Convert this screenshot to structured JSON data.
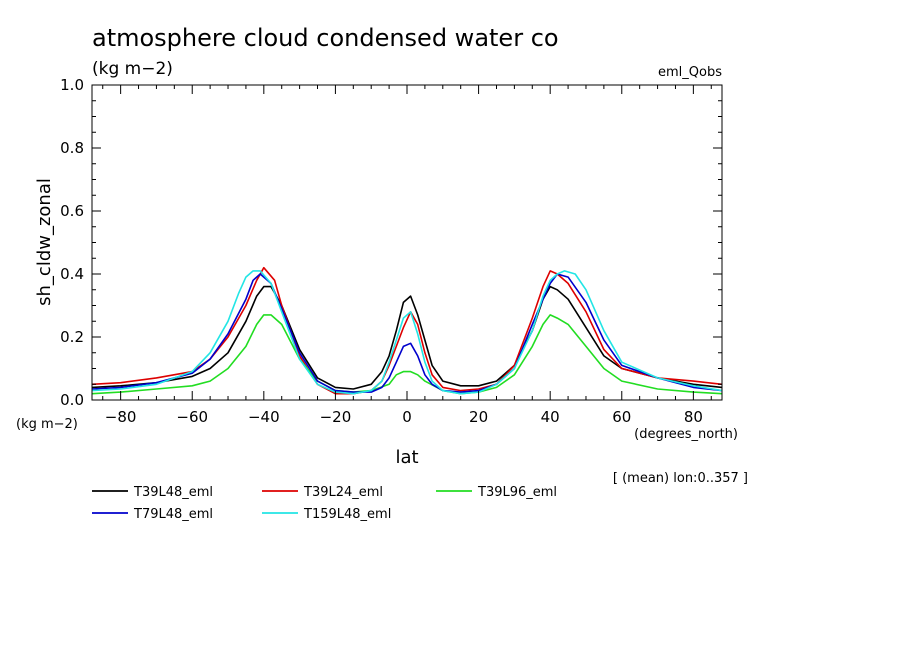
{
  "chart_data": {
    "type": "line",
    "title": "atmosphere cloud condensed water co",
    "subtitle": "(kg m−2)",
    "experiment": "eml_Qobs",
    "ylabel": "sh_cldw_zonal",
    "yunits": "(kg m−2)",
    "xlabel": "lat",
    "xunits": "(degrees_north)",
    "footnote": "[ (mean) lon:0..357 ]",
    "xlim": [
      -88,
      88
    ],
    "ylim": [
      0,
      1.0
    ],
    "xticks": [
      -80,
      -60,
      -40,
      -20,
      0,
      20,
      40,
      60,
      80
    ],
    "xtick_labels": [
      "−80",
      "−60",
      "−40",
      "−20",
      "0",
      "20",
      "40",
      "60",
      "80"
    ],
    "yticks": [
      0,
      0.2,
      0.4,
      0.6,
      0.8,
      1.0
    ],
    "ytick_labels": [
      "0.0",
      "0.2",
      "0.4",
      "0.6",
      "0.8",
      "1.0"
    ],
    "grid": false,
    "legend_position": "bottom",
    "series": [
      {
        "name": "T39L48_eml",
        "color": "#000000",
        "x": [
          -88,
          -80,
          -70,
          -60,
          -55,
          -50,
          -45,
          -42,
          -40,
          -38,
          -35,
          -30,
          -25,
          -20,
          -15,
          -10,
          -7,
          -5,
          -3,
          -1,
          1,
          3,
          5,
          7,
          10,
          15,
          20,
          25,
          30,
          35,
          38,
          40,
          42,
          45,
          50,
          55,
          60,
          70,
          80,
          88
        ],
        "y": [
          0.04,
          0.045,
          0.055,
          0.075,
          0.1,
          0.15,
          0.25,
          0.33,
          0.36,
          0.36,
          0.3,
          0.16,
          0.07,
          0.04,
          0.035,
          0.05,
          0.09,
          0.14,
          0.22,
          0.31,
          0.33,
          0.27,
          0.19,
          0.11,
          0.06,
          0.045,
          0.045,
          0.06,
          0.11,
          0.22,
          0.32,
          0.36,
          0.35,
          0.32,
          0.23,
          0.14,
          0.1,
          0.07,
          0.05,
          0.04
        ]
      },
      {
        "name": "T39L24_eml",
        "color": "#dd0000",
        "x": [
          -88,
          -80,
          -70,
          -60,
          -55,
          -50,
          -45,
          -42,
          -40,
          -37,
          -35,
          -30,
          -25,
          -20,
          -15,
          -10,
          -7,
          -5,
          -3,
          -1,
          1,
          3,
          5,
          7,
          10,
          15,
          20,
          25,
          30,
          35,
          38,
          40,
          42,
          45,
          50,
          55,
          60,
          70,
          80,
          88
        ],
        "y": [
          0.05,
          0.055,
          0.07,
          0.09,
          0.13,
          0.2,
          0.3,
          0.38,
          0.42,
          0.38,
          0.3,
          0.14,
          0.05,
          0.02,
          0.02,
          0.03,
          0.06,
          0.11,
          0.17,
          0.23,
          0.28,
          0.24,
          0.15,
          0.08,
          0.04,
          0.03,
          0.035,
          0.05,
          0.11,
          0.26,
          0.36,
          0.41,
          0.4,
          0.37,
          0.28,
          0.16,
          0.1,
          0.07,
          0.06,
          0.05
        ]
      },
      {
        "name": "T39L96_eml",
        "color": "#22dd22",
        "x": [
          -88,
          -80,
          -70,
          -60,
          -55,
          -50,
          -45,
          -42,
          -40,
          -38,
          -35,
          -30,
          -25,
          -20,
          -15,
          -10,
          -5,
          -3,
          -1,
          1,
          3,
          5,
          10,
          15,
          20,
          25,
          30,
          35,
          38,
          40,
          42,
          45,
          50,
          55,
          60,
          70,
          80,
          88
        ],
        "y": [
          0.02,
          0.025,
          0.035,
          0.045,
          0.06,
          0.1,
          0.17,
          0.24,
          0.27,
          0.27,
          0.24,
          0.13,
          0.06,
          0.03,
          0.025,
          0.03,
          0.05,
          0.08,
          0.09,
          0.09,
          0.08,
          0.06,
          0.03,
          0.02,
          0.025,
          0.04,
          0.08,
          0.17,
          0.24,
          0.27,
          0.26,
          0.24,
          0.17,
          0.1,
          0.06,
          0.035,
          0.025,
          0.02
        ]
      },
      {
        "name": "T79L48_eml",
        "color": "#0000cc",
        "x": [
          -88,
          -80,
          -70,
          -60,
          -55,
          -50,
          -45,
          -43,
          -41,
          -38,
          -35,
          -30,
          -25,
          -20,
          -15,
          -10,
          -7,
          -5,
          -3,
          -1,
          1,
          3,
          5,
          7,
          10,
          15,
          20,
          25,
          30,
          35,
          38,
          40,
          42,
          45,
          50,
          55,
          60,
          70,
          80,
          88
        ],
        "y": [
          0.035,
          0.04,
          0.055,
          0.085,
          0.13,
          0.21,
          0.32,
          0.38,
          0.4,
          0.37,
          0.29,
          0.15,
          0.06,
          0.03,
          0.025,
          0.025,
          0.04,
          0.07,
          0.12,
          0.17,
          0.18,
          0.14,
          0.08,
          0.05,
          0.03,
          0.025,
          0.03,
          0.05,
          0.1,
          0.24,
          0.32,
          0.37,
          0.4,
          0.39,
          0.31,
          0.19,
          0.11,
          0.07,
          0.04,
          0.03
        ]
      },
      {
        "name": "T159L48_eml",
        "color": "#22e5e5",
        "x": [
          -88,
          -80,
          -70,
          -60,
          -55,
          -50,
          -47,
          -45,
          -43,
          -41,
          -38,
          -35,
          -30,
          -25,
          -20,
          -15,
          -10,
          -7,
          -5,
          -3,
          -1,
          1,
          3,
          5,
          7,
          10,
          15,
          20,
          25,
          30,
          35,
          38,
          40,
          42,
          44,
          47,
          50,
          55,
          60,
          70,
          80,
          88
        ],
        "y": [
          0.03,
          0.035,
          0.05,
          0.09,
          0.15,
          0.25,
          0.34,
          0.39,
          0.41,
          0.41,
          0.37,
          0.28,
          0.13,
          0.05,
          0.025,
          0.02,
          0.03,
          0.06,
          0.12,
          0.19,
          0.26,
          0.28,
          0.21,
          0.12,
          0.06,
          0.03,
          0.02,
          0.025,
          0.05,
          0.1,
          0.22,
          0.33,
          0.38,
          0.4,
          0.41,
          0.4,
          0.35,
          0.22,
          0.12,
          0.07,
          0.045,
          0.03
        ]
      }
    ]
  }
}
